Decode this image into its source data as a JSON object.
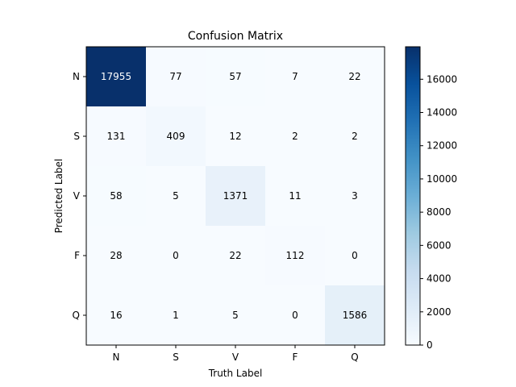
{
  "chart_data": {
    "type": "heatmap",
    "title": "Confusion Matrix",
    "xlabel": "Truth Label",
    "ylabel": "Predicted Label",
    "x_categories": [
      "N",
      "S",
      "V",
      "F",
      "Q"
    ],
    "y_categories": [
      "N",
      "S",
      "V",
      "F",
      "Q"
    ],
    "values": [
      [
        17955,
        77,
        57,
        7,
        22
      ],
      [
        131,
        409,
        12,
        2,
        2
      ],
      [
        58,
        5,
        1371,
        11,
        3
      ],
      [
        28,
        0,
        22,
        112,
        0
      ],
      [
        16,
        1,
        5,
        0,
        1586
      ]
    ],
    "colormap": "Blues",
    "color_low": "#f7fbff",
    "color_high": "#08306b",
    "colorbar": {
      "range": [
        0,
        17955
      ],
      "ticks": [
        0,
        2000,
        4000,
        6000,
        8000,
        10000,
        12000,
        14000,
        16000
      ]
    }
  }
}
